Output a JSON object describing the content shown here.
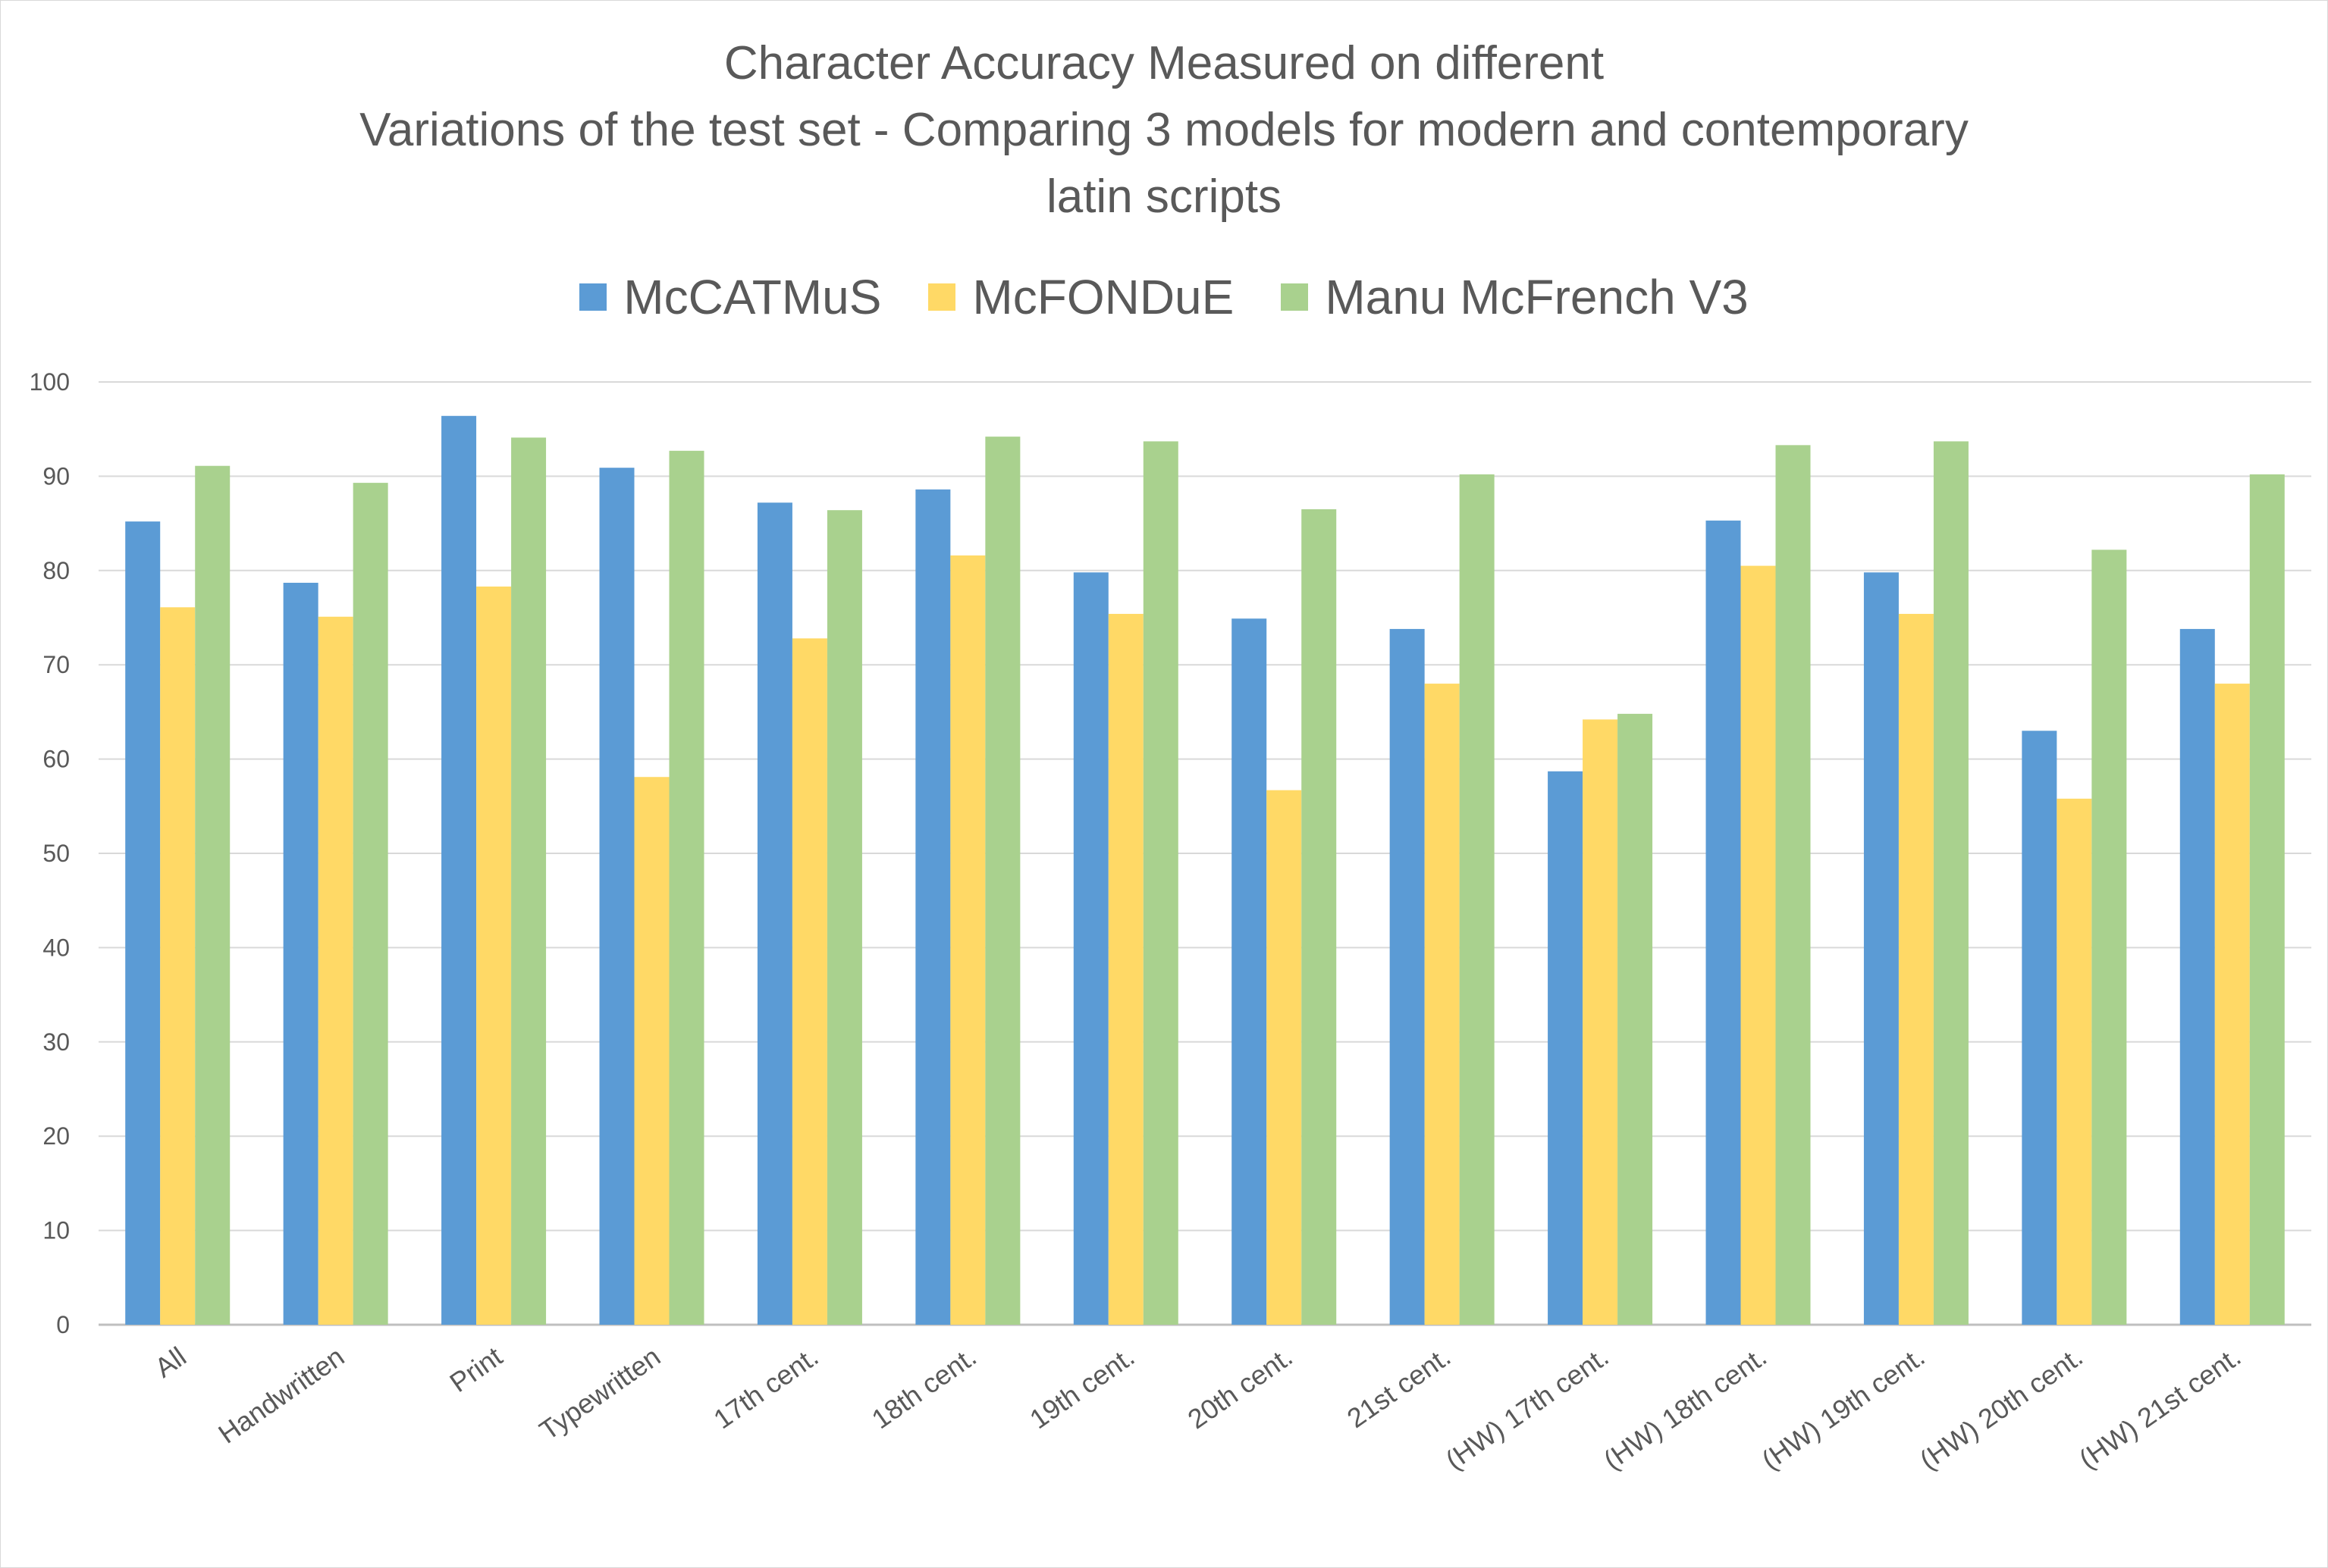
{
  "chart_data": {
    "type": "bar",
    "title_lines": [
      "Character Accuracy Measured on different",
      "Variations of the test set - Comparing 3 models for modern and contemporary",
      "latin scripts"
    ],
    "xlabel": "",
    "ylabel": "",
    "ylim": [
      0,
      100
    ],
    "yticks": [
      0,
      10,
      20,
      30,
      40,
      50,
      60,
      70,
      80,
      90,
      100
    ],
    "grid": true,
    "legend_position": "top",
    "categories": [
      "All",
      "Handwritten",
      "Print",
      "Typewritten",
      "17th cent.",
      "18th cent.",
      "19th cent.",
      "20th cent.",
      "21st cent.",
      "(HW) 17th cent.",
      "(HW) 18th cent.",
      "(HW) 19th cent.",
      "(HW) 20th cent.",
      "(HW) 21st cent."
    ],
    "series": [
      {
        "name": "McCATMuS",
        "color": "#5b9bd5",
        "values": [
          85.2,
          78.7,
          96.4,
          90.9,
          87.2,
          88.6,
          79.8,
          74.9,
          73.8,
          58.7,
          85.3,
          79.8,
          63.0,
          73.8
        ]
      },
      {
        "name": "McFONDuE",
        "color": "#ffd966",
        "values": [
          76.1,
          75.1,
          78.3,
          58.1,
          72.8,
          81.6,
          75.4,
          56.7,
          68.0,
          64.2,
          80.5,
          75.4,
          55.8,
          68.0
        ]
      },
      {
        "name": "Manu McFrench V3",
        "color": "#a9d18e",
        "values": [
          91.1,
          89.3,
          94.1,
          92.7,
          86.4,
          94.2,
          93.7,
          86.5,
          90.2,
          64.8,
          93.3,
          93.7,
          82.2,
          90.2
        ]
      }
    ]
  }
}
